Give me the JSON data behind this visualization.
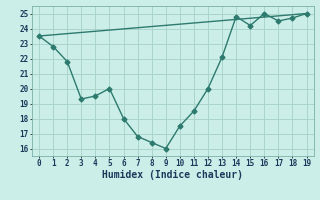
{
  "xlabel": "Humidex (Indice chaleur)",
  "xlim": [
    -0.5,
    19.5
  ],
  "ylim": [
    15.5,
    25.5
  ],
  "xticks": [
    0,
    1,
    2,
    3,
    4,
    5,
    6,
    7,
    8,
    9,
    10,
    11,
    12,
    13,
    14,
    15,
    16,
    17,
    18,
    19
  ],
  "yticks": [
    16,
    17,
    18,
    19,
    20,
    21,
    22,
    23,
    24,
    25
  ],
  "line1_x": [
    0,
    1,
    2,
    3,
    4,
    5,
    6,
    7,
    8,
    9,
    10,
    11,
    12,
    13,
    14,
    15,
    16,
    17,
    18,
    19
  ],
  "line1_y": [
    23.5,
    22.8,
    21.8,
    19.3,
    19.5,
    20.0,
    18.0,
    16.8,
    16.4,
    16.0,
    17.5,
    18.5,
    20.0,
    22.1,
    24.8,
    24.2,
    25.0,
    24.5,
    24.7,
    25.0
  ],
  "line2_x": [
    0,
    19
  ],
  "line2_y": [
    23.5,
    25.0
  ],
  "color": "#2d7a6e",
  "bg_color": "#cceee8",
  "grid_color": "#aad4cc",
  "marker": "D",
  "markersize": 2.5,
  "linewidth": 1.0,
  "xlabel_fontsize": 7,
  "tick_fontsize": 5.5
}
